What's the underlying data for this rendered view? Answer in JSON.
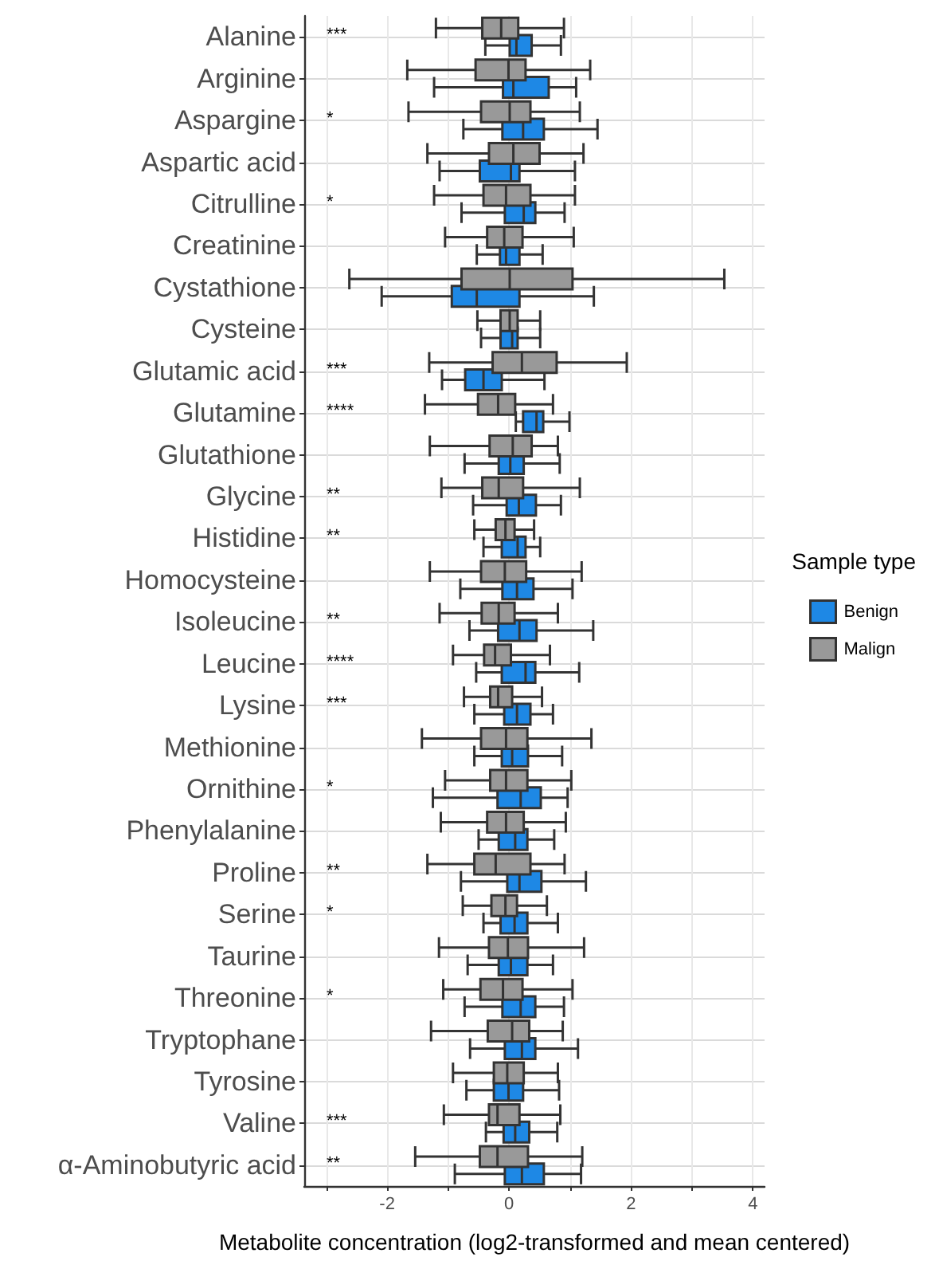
{
  "chart_data": {
    "type": "box",
    "orientation": "horizontal",
    "xlabel": "Metabolite concentration (log2-transformed and mean centered)",
    "legend_title": "Sample type",
    "legend": "right",
    "grid": true,
    "categories": [
      "Alanine",
      "Arginine",
      "Aspargine",
      "Aspartic acid",
      "Citrulline",
      "Creatinine",
      "Cystathione",
      "Cysteine",
      "Glutamic acid",
      "Glutamine",
      "Glutathione",
      "Glycine",
      "Histidine",
      "Homocysteine",
      "Isoleucine",
      "Leucine",
      "Lysine",
      "Methionine",
      "Ornithine",
      "Phenylalanine",
      "Proline",
      "Serine",
      "Taurine",
      "Threonine",
      "Tryptophane",
      "Tyrosine",
      "Valine",
      "α-Aminobutyric acid"
    ],
    "xlim": [
      -3.36,
      4.19
    ],
    "xticks": [
      {
        "value": -3,
        "label": null
      },
      -2,
      {
        "value": -1,
        "label": null
      },
      0,
      {
        "value": 1,
        "label": null
      },
      2,
      {
        "value": 3,
        "label": null
      },
      4
    ],
    "series": [
      {
        "name": "Benign",
        "color": "#1e88e5",
        "boxes": [
          {
            "low": -0.39,
            "q1": 0.01,
            "median": 0.12,
            "q3": 0.37,
            "high": 0.85
          },
          {
            "low": -1.23,
            "q1": -0.1,
            "median": 0.07,
            "q3": 0.65,
            "high": 1.1
          },
          {
            "low": -0.75,
            "q1": -0.11,
            "median": 0.23,
            "q3": 0.57,
            "high": 1.45
          },
          {
            "low": -1.14,
            "q1": -0.48,
            "median": 0.03,
            "q3": 0.17,
            "high": 1.08
          },
          {
            "low": -0.78,
            "q1": -0.07,
            "median": 0.24,
            "q3": 0.43,
            "high": 0.91
          },
          {
            "low": -0.53,
            "q1": -0.15,
            "median": -0.05,
            "q3": 0.17,
            "high": 0.55
          },
          {
            "low": -2.09,
            "q1": -0.94,
            "median": -0.53,
            "q3": 0.17,
            "high": 1.39
          },
          {
            "low": -0.46,
            "q1": -0.14,
            "median": 0.05,
            "q3": 0.14,
            "high": 0.51
          },
          {
            "low": -1.1,
            "q1": -0.72,
            "median": -0.42,
            "q3": -0.12,
            "high": 0.58
          },
          {
            "low": 0.11,
            "q1": 0.23,
            "median": 0.45,
            "q3": 0.56,
            "high": 0.99
          },
          {
            "low": -0.73,
            "q1": -0.17,
            "median": 0.02,
            "q3": 0.24,
            "high": 0.83
          },
          {
            "low": -0.59,
            "q1": -0.04,
            "median": 0.16,
            "q3": 0.44,
            "high": 0.85
          },
          {
            "low": -0.42,
            "q1": -0.12,
            "median": 0.14,
            "q3": 0.27,
            "high": 0.51
          },
          {
            "low": -0.8,
            "q1": -0.11,
            "median": 0.13,
            "q3": 0.4,
            "high": 1.04
          },
          {
            "low": -0.65,
            "q1": -0.18,
            "median": 0.17,
            "q3": 0.45,
            "high": 1.38
          },
          {
            "low": -0.54,
            "q1": -0.12,
            "median": 0.27,
            "q3": 0.43,
            "high": 1.15
          },
          {
            "low": -0.57,
            "q1": -0.08,
            "median": 0.13,
            "q3": 0.35,
            "high": 0.72
          },
          {
            "low": -0.57,
            "q1": -0.12,
            "median": 0.05,
            "q3": 0.31,
            "high": 0.87
          },
          {
            "low": -1.25,
            "q1": -0.19,
            "median": 0.19,
            "q3": 0.52,
            "high": 0.96
          },
          {
            "low": -0.5,
            "q1": -0.17,
            "median": 0.1,
            "q3": 0.3,
            "high": 0.74
          },
          {
            "low": -0.79,
            "q1": -0.03,
            "median": 0.17,
            "q3": 0.53,
            "high": 1.26
          },
          {
            "low": -0.42,
            "q1": -0.14,
            "median": 0.09,
            "q3": 0.3,
            "high": 0.8
          },
          {
            "low": -0.68,
            "q1": -0.17,
            "median": 0.03,
            "q3": 0.3,
            "high": 0.72
          },
          {
            "low": -0.73,
            "q1": -0.11,
            "median": 0.19,
            "q3": 0.43,
            "high": 0.9
          },
          {
            "low": -0.64,
            "q1": -0.07,
            "median": 0.21,
            "q3": 0.43,
            "high": 1.13
          },
          {
            "low": -0.7,
            "q1": -0.25,
            "median": -0.01,
            "q3": 0.23,
            "high": 0.82
          },
          {
            "low": -0.38,
            "q1": -0.09,
            "median": 0.1,
            "q3": 0.33,
            "high": 0.79
          },
          {
            "low": -0.89,
            "q1": -0.07,
            "median": 0.21,
            "q3": 0.57,
            "high": 1.18
          }
        ]
      },
      {
        "name": "Malign",
        "color": "#999999",
        "boxes": [
          {
            "low": -1.2,
            "q1": -0.44,
            "median": -0.13,
            "q3": 0.15,
            "high": 0.9
          },
          {
            "low": -1.67,
            "q1": -0.55,
            "median": -0.01,
            "q3": 0.27,
            "high": 1.33
          },
          {
            "low": -1.65,
            "q1": -0.46,
            "median": 0.01,
            "q3": 0.35,
            "high": 1.16
          },
          {
            "low": -1.34,
            "q1": -0.33,
            "median": 0.07,
            "q3": 0.5,
            "high": 1.22
          },
          {
            "low": -1.23,
            "q1": -0.42,
            "median": -0.05,
            "q3": 0.35,
            "high": 1.08
          },
          {
            "low": -1.05,
            "q1": -0.36,
            "median": -0.08,
            "q3": 0.22,
            "high": 1.06
          },
          {
            "low": -2.62,
            "q1": -0.78,
            "median": 0.01,
            "q3": 1.04,
            "high": 3.53
          },
          {
            "low": -0.52,
            "q1": -0.14,
            "median": 0.01,
            "q3": 0.14,
            "high": 0.51
          },
          {
            "low": -1.31,
            "q1": -0.27,
            "median": 0.21,
            "q3": 0.78,
            "high": 1.93
          },
          {
            "low": -1.38,
            "q1": -0.51,
            "median": -0.18,
            "q3": 0.1,
            "high": 0.72
          },
          {
            "low": -1.3,
            "q1": -0.32,
            "median": 0.06,
            "q3": 0.37,
            "high": 0.8
          },
          {
            "low": -1.11,
            "q1": -0.44,
            "median": -0.17,
            "q3": 0.23,
            "high": 1.16
          },
          {
            "low": -0.57,
            "q1": -0.22,
            "median": -0.06,
            "q3": 0.09,
            "high": 0.41
          },
          {
            "low": -1.3,
            "q1": -0.46,
            "median": -0.07,
            "q3": 0.28,
            "high": 1.19
          },
          {
            "low": -1.14,
            "q1": -0.45,
            "median": -0.17,
            "q3": 0.09,
            "high": 0.8
          },
          {
            "low": -0.92,
            "q1": -0.41,
            "median": -0.23,
            "q3": 0.03,
            "high": 0.67
          },
          {
            "low": -0.74,
            "q1": -0.31,
            "median": -0.18,
            "q3": 0.05,
            "high": 0.54
          },
          {
            "low": -1.43,
            "q1": -0.46,
            "median": -0.05,
            "q3": 0.3,
            "high": 1.35
          },
          {
            "low": -1.05,
            "q1": -0.31,
            "median": -0.05,
            "q3": 0.3,
            "high": 1.02
          },
          {
            "low": -1.12,
            "q1": -0.36,
            "median": -0.05,
            "q3": 0.24,
            "high": 0.93
          },
          {
            "low": -1.34,
            "q1": -0.57,
            "median": -0.22,
            "q3": 0.35,
            "high": 0.91
          },
          {
            "low": -0.76,
            "q1": -0.29,
            "median": -0.06,
            "q3": 0.13,
            "high": 0.62
          },
          {
            "low": -1.15,
            "q1": -0.33,
            "median": -0.02,
            "q3": 0.31,
            "high": 1.23
          },
          {
            "low": -1.08,
            "q1": -0.47,
            "median": -0.1,
            "q3": 0.22,
            "high": 1.04
          },
          {
            "low": -1.28,
            "q1": -0.35,
            "median": 0.05,
            "q3": 0.33,
            "high": 0.88
          },
          {
            "low": -0.92,
            "q1": -0.25,
            "median": -0.03,
            "q3": 0.24,
            "high": 0.8
          },
          {
            "low": -1.07,
            "q1": -0.33,
            "median": -0.19,
            "q3": 0.17,
            "high": 0.84
          },
          {
            "low": -1.54,
            "q1": -0.48,
            "median": -0.19,
            "q3": 0.31,
            "high": 1.2
          }
        ]
      }
    ],
    "annotations": [
      "***",
      null,
      "*",
      null,
      "*",
      null,
      null,
      null,
      "***",
      "****",
      null,
      "**",
      "**",
      null,
      "**",
      "****",
      "***",
      null,
      "*",
      null,
      "**",
      "*",
      null,
      "*",
      null,
      null,
      "***",
      "**"
    ]
  }
}
